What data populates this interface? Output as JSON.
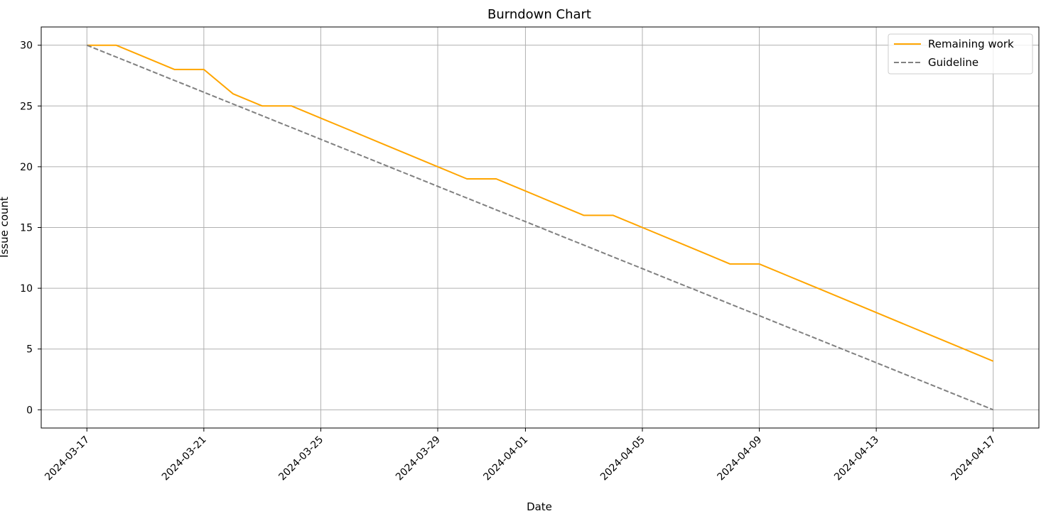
{
  "chart_data": {
    "type": "line",
    "title": "Burndown Chart",
    "xlabel": "Date",
    "ylabel": "Issue count",
    "x_type": "date",
    "xlim": [
      "2024-03-15T10:30",
      "2024-04-18T13:30"
    ],
    "ylim": [
      -1.5,
      31.5
    ],
    "x_ticks": [
      "2024-03-17",
      "2024-03-21",
      "2024-03-25",
      "2024-03-29",
      "2024-04-01",
      "2024-04-05",
      "2024-04-09",
      "2024-04-13",
      "2024-04-17"
    ],
    "y_ticks": [
      0,
      5,
      10,
      15,
      20,
      25,
      30
    ],
    "grid": true,
    "legend_position": "top-right",
    "series": [
      {
        "name": "Remaining work",
        "color": "#FFA500",
        "style": "solid",
        "points": [
          [
            "2024-03-17",
            30
          ],
          [
            "2024-03-18",
            30
          ],
          [
            "2024-03-19",
            29
          ],
          [
            "2024-03-20",
            28
          ],
          [
            "2024-03-21",
            28
          ],
          [
            "2024-03-22",
            26
          ],
          [
            "2024-03-23",
            25
          ],
          [
            "2024-03-24",
            25
          ],
          [
            "2024-03-25",
            24
          ],
          [
            "2024-03-26",
            23
          ],
          [
            "2024-03-27",
            22
          ],
          [
            "2024-03-28",
            21
          ],
          [
            "2024-03-29",
            20
          ],
          [
            "2024-03-30",
            19
          ],
          [
            "2024-03-31",
            19
          ],
          [
            "2024-04-01",
            18
          ],
          [
            "2024-04-02",
            17
          ],
          [
            "2024-04-03",
            16
          ],
          [
            "2024-04-04",
            16
          ],
          [
            "2024-04-05",
            15
          ],
          [
            "2024-04-06",
            14
          ],
          [
            "2024-04-07",
            13
          ],
          [
            "2024-04-08",
            12
          ],
          [
            "2024-04-09",
            12
          ],
          [
            "2024-04-10",
            11
          ],
          [
            "2024-04-11",
            10
          ],
          [
            "2024-04-12",
            9
          ],
          [
            "2024-04-13",
            8
          ],
          [
            "2024-04-14",
            7
          ],
          [
            "2024-04-15",
            6
          ],
          [
            "2024-04-16",
            5
          ],
          [
            "2024-04-17",
            4
          ]
        ]
      },
      {
        "name": "Guideline",
        "color": "#808080",
        "style": "dashed",
        "points": [
          [
            "2024-03-17",
            30
          ],
          [
            "2024-04-17",
            0
          ]
        ]
      }
    ]
  }
}
